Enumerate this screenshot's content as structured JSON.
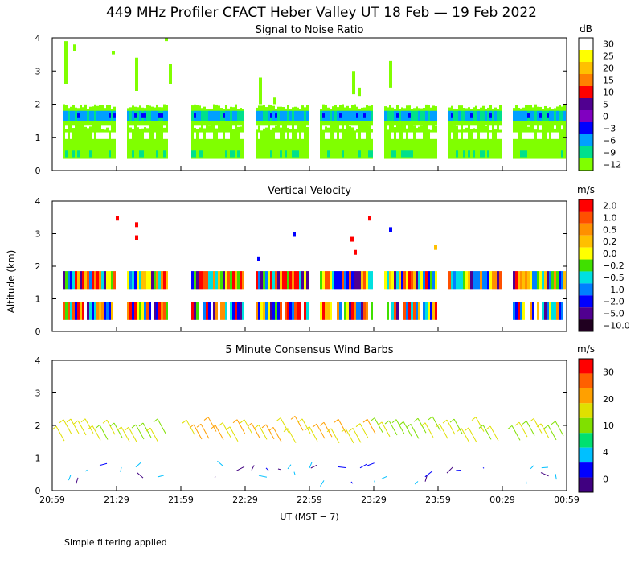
{
  "title": "449 MHz Profiler CFACT Heber Valley UT 18 Feb — 19 Feb 2022",
  "footnote": "Simple filtering applied",
  "chart_data": [
    {
      "type": "heatmap",
      "title": "Signal to Noise Ratio",
      "ylabel": "Altitude (km)",
      "xlabel": "UT  (MST − 7)",
      "ylim": [
        0,
        4
      ],
      "y_ticks": [
        "0",
        "1",
        "2",
        "3",
        "4"
      ],
      "x_ticks": [
        "20:59",
        "21:29",
        "21:59",
        "22:29",
        "22:59",
        "23:29",
        "23:59",
        "00:29",
        "00:59"
      ],
      "colorbar": {
        "unit": "dB",
        "labels": [
          "30",
          "25",
          "20",
          "15",
          "10",
          "5",
          "0",
          "−3",
          "−6",
          "−9",
          "−12"
        ],
        "colors": [
          "#ffffff",
          "#ffff00",
          "#ffc000",
          "#ff8000",
          "#ff0000",
          "#500090",
          "#8000c0",
          "#0000ff",
          "#00a0ff",
          "#00e08c",
          "#80ff00"
        ]
      }
    },
    {
      "type": "heatmap",
      "title": "Vertical Velocity",
      "ylim": [
        0,
        4
      ],
      "y_ticks": [
        "0",
        "1",
        "2",
        "3",
        "4"
      ],
      "colorbar": {
        "unit": "m/s",
        "labels": [
          "2.0",
          "1.0",
          "0.5",
          "0.2",
          "0.0",
          "−0.2",
          "−0.5",
          "−1.0",
          "−2.0",
          "−5.0",
          "−10.0"
        ],
        "colors": [
          "#ff0000",
          "#ff5000",
          "#ff9000",
          "#ffc000",
          "#ffff00",
          "#40e000",
          "#00e0e0",
          "#0080ff",
          "#0000ff",
          "#500090",
          "#200020"
        ]
      }
    },
    {
      "type": "scatter",
      "title": "5 Minute Consensus Wind Barbs",
      "ylim": [
        0,
        4
      ],
      "y_ticks": [
        "0",
        "1",
        "2",
        "3",
        "4"
      ],
      "colorbar": {
        "unit": "m/s",
        "labels": [
          "30",
          "20",
          "10",
          "4",
          "0"
        ],
        "colors": [
          "#ff0000",
          "#ff6000",
          "#ffa000",
          "#e0e000",
          "#80e000",
          "#00e070",
          "#00c0ff",
          "#0000ff",
          "#400080"
        ]
      }
    }
  ]
}
